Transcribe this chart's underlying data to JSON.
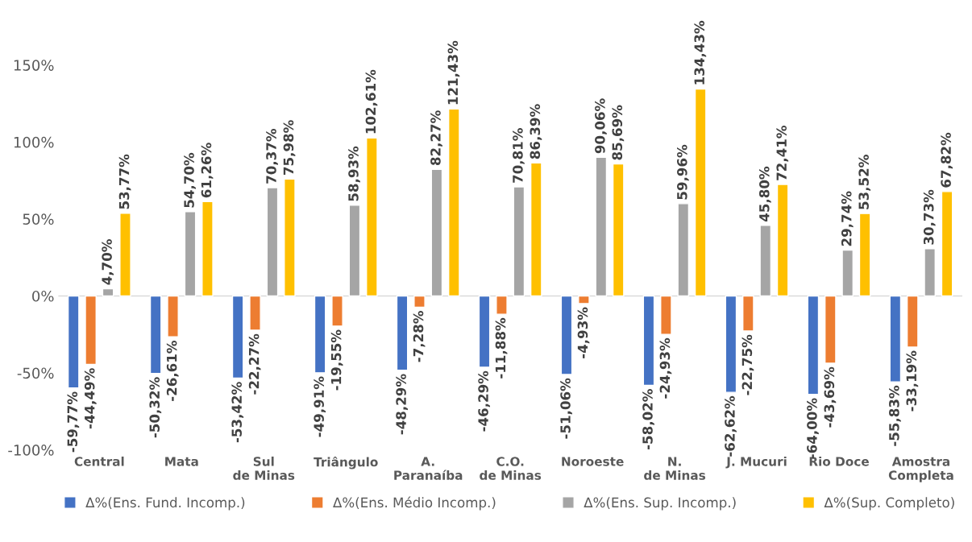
{
  "chart_data": {
    "type": "bar",
    "categories": [
      "Central",
      "Mata",
      "Sul de Minas",
      "Triângulo",
      "A. Paranaíba",
      "C.O. de Minas",
      "Noroeste",
      "N. de Minas",
      "J. Mucuri",
      "Rio Doce",
      "Amostra Completa"
    ],
    "series": [
      {
        "name": "Δ%(Ens. Fund. Incomp.)",
        "color": "#4472c4",
        "values": [
          -59.77,
          -50.32,
          -53.42,
          -49.91,
          -48.29,
          -46.29,
          -51.06,
          -58.02,
          -62.62,
          -64.0,
          -55.83
        ],
        "value_labels": [
          "-59,77%",
          "-50,32%",
          "-53,42%",
          "-49,91%",
          "-48,29%",
          "-46,29%",
          "-51,06%",
          "-58,02%",
          "-62,62%",
          "-64,00%",
          "-55,83%"
        ]
      },
      {
        "name": "Δ%(Ens. Médio Incomp.)",
        "color": "#ed7d31",
        "values": [
          -44.49,
          -26.61,
          -22.27,
          -19.55,
          -7.28,
          -11.88,
          -4.93,
          -24.93,
          -22.75,
          -43.69,
          -33.19
        ],
        "value_labels": [
          "-44,49%",
          "-26,61%",
          "-22,27%",
          "-19,55%",
          "-7,28%",
          "-11,88%",
          "-4,93%",
          "-24,93%",
          "-22,75%",
          "-43,69%",
          "-33,19%"
        ]
      },
      {
        "name": "Δ%(Ens. Sup. Incomp.)",
        "color": "#a5a5a5",
        "values": [
          4.7,
          54.7,
          70.37,
          58.93,
          82.27,
          70.81,
          90.06,
          59.96,
          45.8,
          29.74,
          30.73
        ],
        "value_labels": [
          "4,70%",
          "54,70%",
          "70,37%",
          "58,93%",
          "82,27%",
          "70,81%",
          "90,06%",
          "59,96%",
          "45,80%",
          "29,74%",
          "30,73%"
        ]
      },
      {
        "name": "Δ%(Sup. Completo)",
        "color": "#ffc000",
        "values": [
          53.77,
          61.26,
          75.98,
          102.61,
          121.43,
          86.39,
          85.69,
          134.43,
          72.41,
          53.52,
          67.82
        ],
        "value_labels": [
          "53,77%",
          "61,26%",
          "75,98%",
          "102,61%",
          "121,43%",
          "86,39%",
          "85,69%",
          "134,43%",
          "72,41%",
          "53,52%",
          "67,82%"
        ]
      }
    ],
    "ylim": [
      -100,
      150
    ],
    "yticks": [
      {
        "value": -100,
        "label": "-100%"
      },
      {
        "value": -50,
        "label": "-50%"
      },
      {
        "value": 0,
        "label": "0%"
      },
      {
        "value": 50,
        "label": "50%"
      },
      {
        "value": 100,
        "label": "100%"
      },
      {
        "value": 150,
        "label": "150%"
      }
    ],
    "grid": false,
    "ref_lines": [
      {
        "axis": "y",
        "value": 0,
        "color": "#d9d9d9"
      }
    ],
    "legend": "bottom"
  }
}
